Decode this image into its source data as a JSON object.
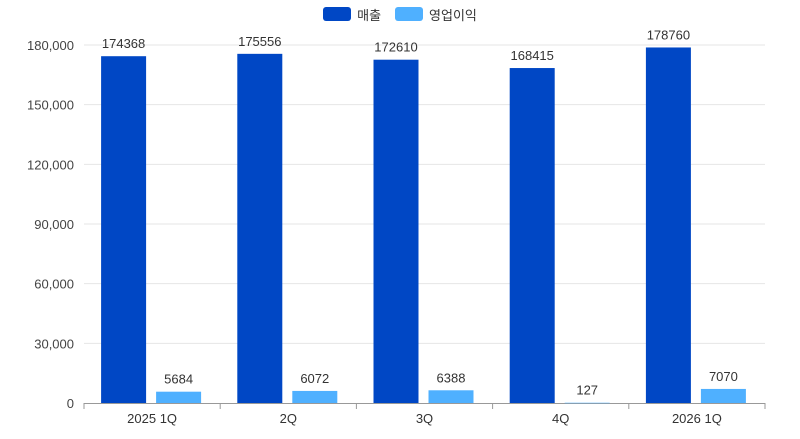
{
  "chart_data": {
    "type": "bar",
    "categories": [
      "2025 1Q",
      "2Q",
      "3Q",
      "4Q",
      "2026 1Q"
    ],
    "series": [
      {
        "name": "매출",
        "color": "#0047C5",
        "values": [
          174368,
          175556,
          172610,
          168415,
          178760
        ]
      },
      {
        "name": "영업이익",
        "color": "#4FB0FF",
        "values": [
          5684,
          6072,
          6388,
          127,
          7070
        ]
      }
    ],
    "ylim": [
      0,
      180000
    ],
    "yticks": [
      "0",
      "30,000",
      "60,000",
      "90,000",
      "120,000",
      "150,000",
      "180,000"
    ],
    "ytick_values": [
      0,
      30000,
      60000,
      90000,
      120000,
      150000,
      180000
    ],
    "grid": true,
    "legend_position": "top-center"
  }
}
